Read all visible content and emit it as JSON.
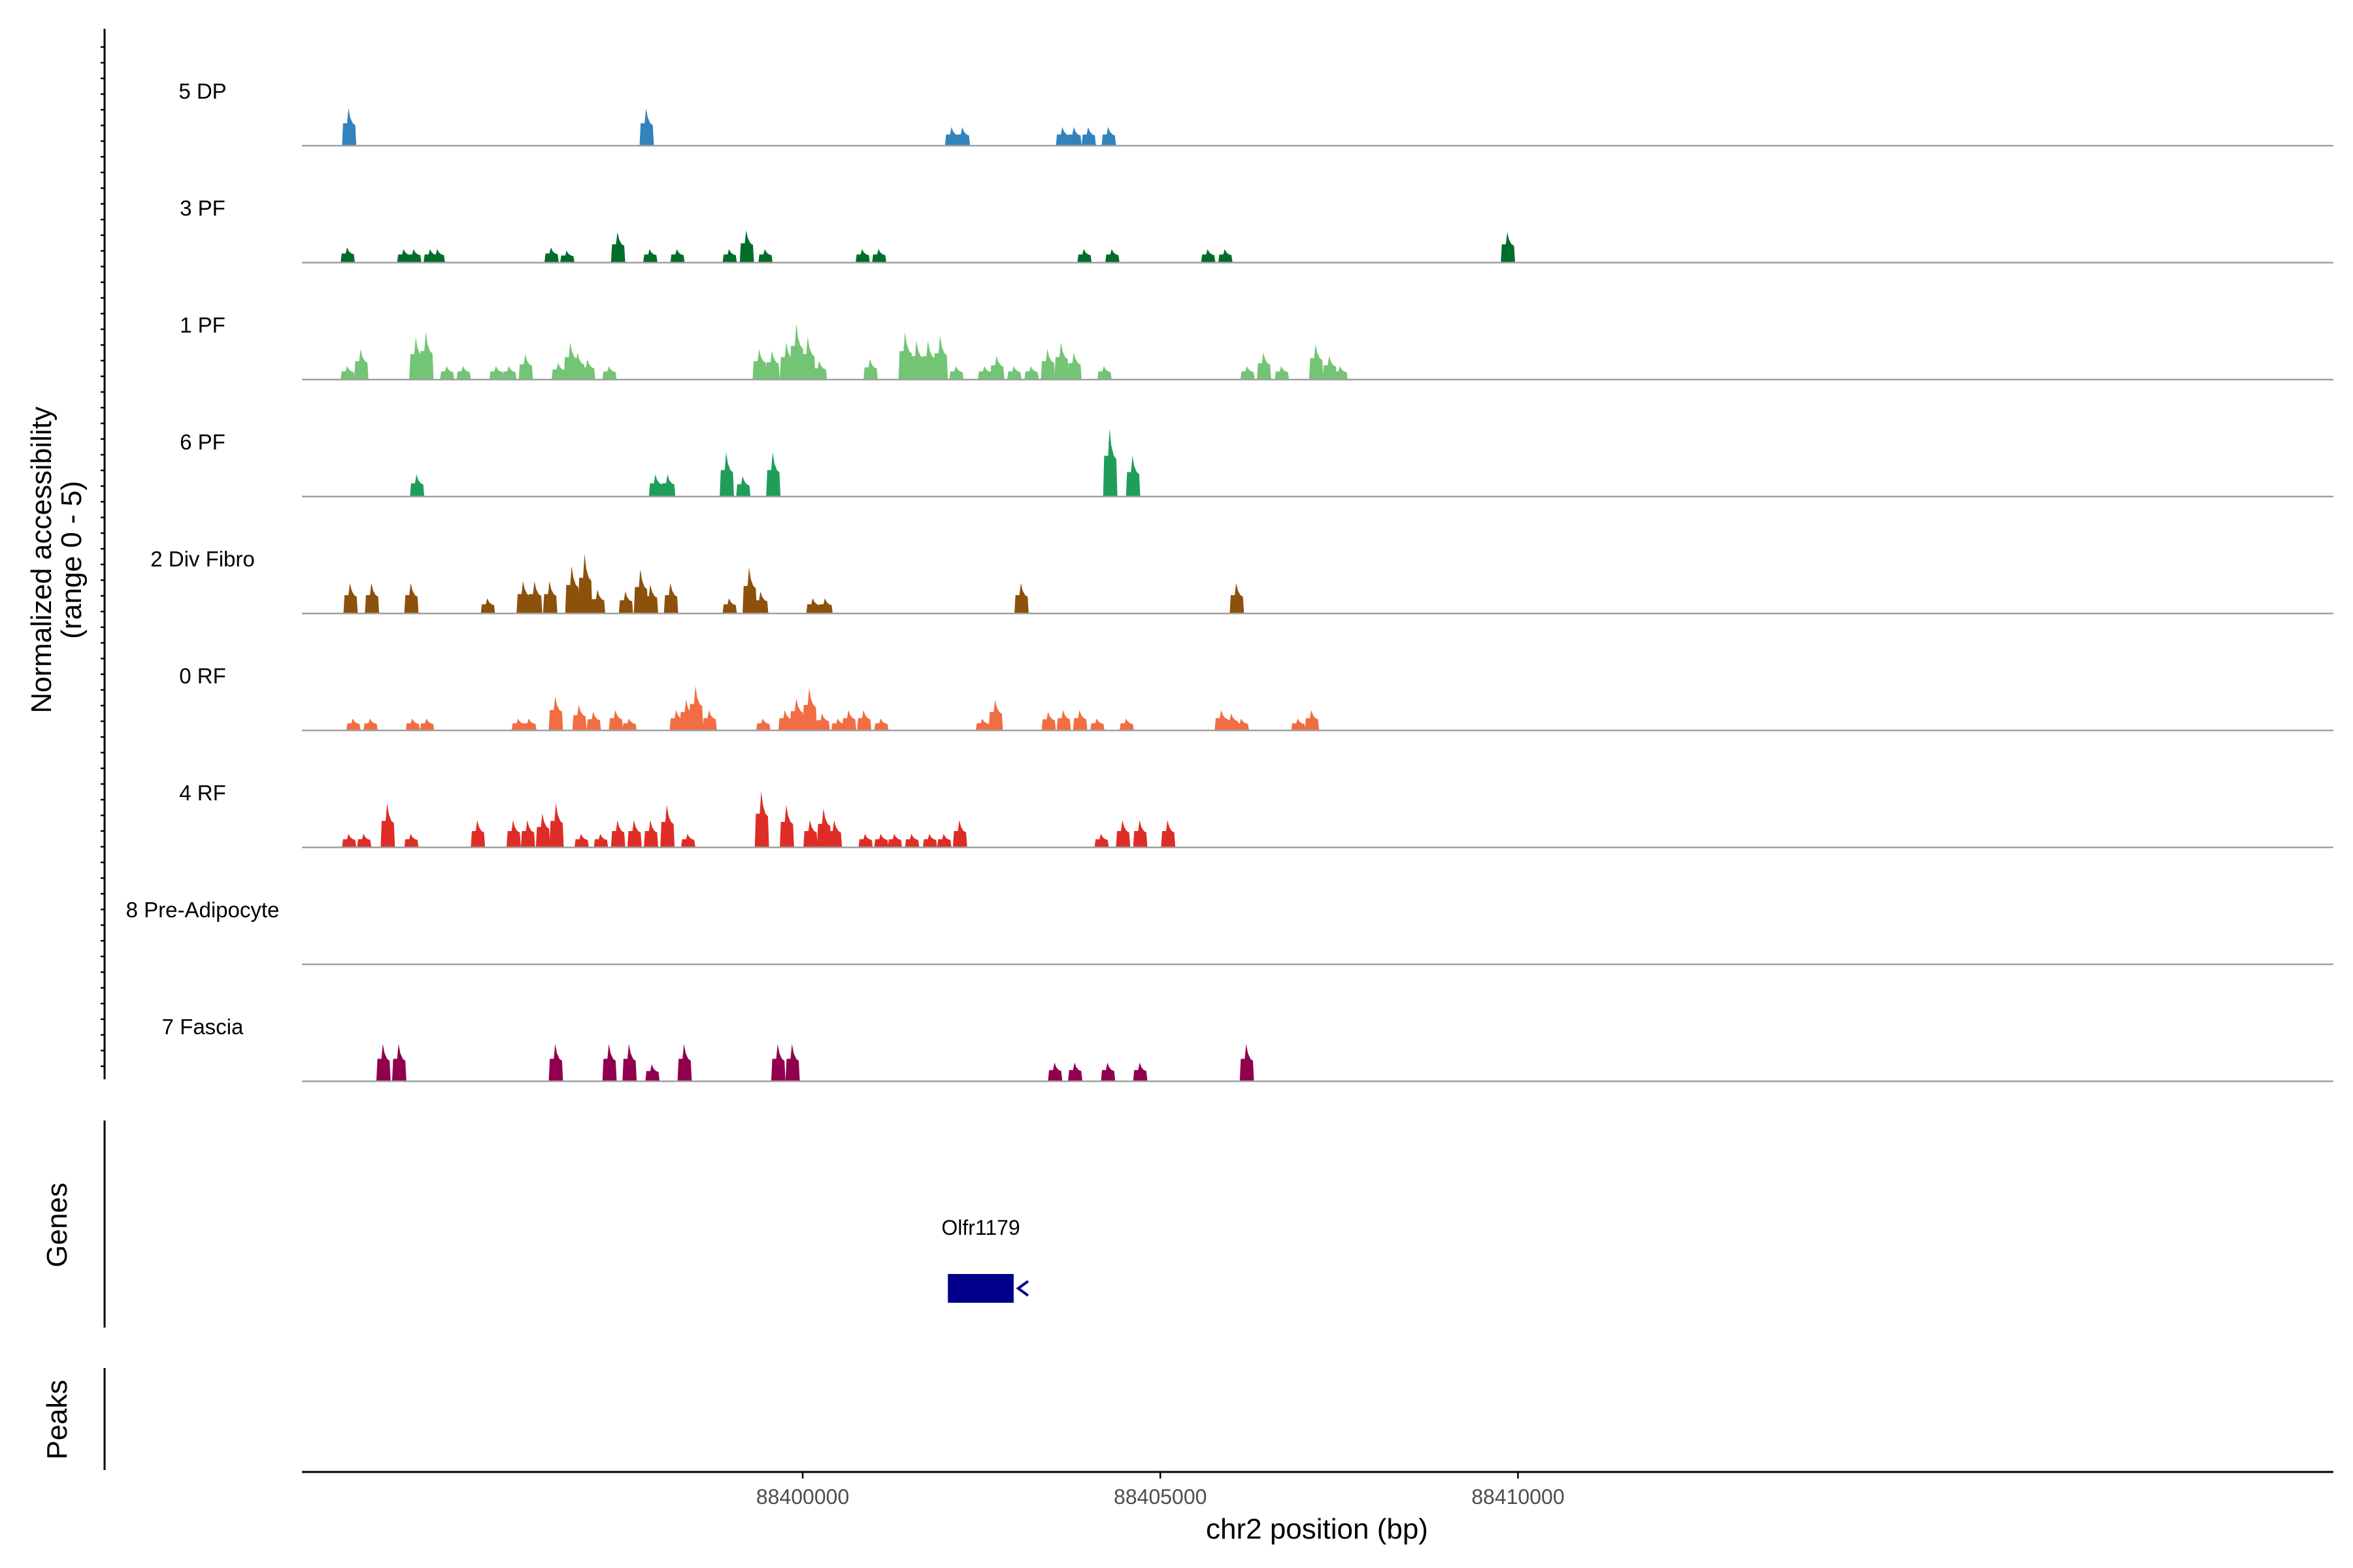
{
  "chart_data": {
    "type": "area",
    "title": "",
    "xlabel": "chr2 position (bp)",
    "ylabel": "Normalized accessibility\n(range 0 - 5)",
    "ylim": [
      0,
      5
    ],
    "xlim": [
      88393000,
      88421400
    ],
    "xticks": [
      88400000,
      88405000,
      88410000
    ],
    "xtick_labels": [
      "88400000",
      "88405000",
      "88410000"
    ],
    "bin_width_bp": 200,
    "series": [
      {
        "name": "5 DP",
        "color": "#3182bd",
        "peaks": [
          [
            88393660,
            2.2
          ],
          [
            88397820,
            2.2
          ],
          [
            88402090,
            1.1
          ],
          [
            88402240,
            1.1
          ],
          [
            88403640,
            1.1
          ],
          [
            88403800,
            1.1
          ],
          [
            88404000,
            1.1
          ],
          [
            88404280,
            1.1
          ]
        ]
      },
      {
        "name": "3 PF",
        "color": "#006d2c",
        "peaks": [
          [
            88393640,
            0.9
          ],
          [
            88394430,
            0.8
          ],
          [
            88394570,
            0.8
          ],
          [
            88394800,
            0.8
          ],
          [
            88394900,
            0.8
          ],
          [
            88396490,
            0.9
          ],
          [
            88396710,
            0.7
          ],
          [
            88397420,
            1.8
          ],
          [
            88397870,
            0.8
          ],
          [
            88398250,
            0.8
          ],
          [
            88398980,
            0.8
          ],
          [
            88399220,
            1.9
          ],
          [
            88399480,
            0.8
          ],
          [
            88400840,
            0.8
          ],
          [
            88401070,
            0.8
          ],
          [
            88403940,
            0.8
          ],
          [
            88404330,
            0.8
          ],
          [
            88405670,
            0.8
          ],
          [
            88405910,
            0.8
          ],
          [
            88409860,
            1.8
          ]
        ]
      },
      {
        "name": "1 PF",
        "color": "#74c476",
        "peaks": [
          [
            88393640,
            0.8
          ],
          [
            88393830,
            1.8
          ],
          [
            88394600,
            2.5
          ],
          [
            88394740,
            2.8
          ],
          [
            88395030,
            0.8
          ],
          [
            88395260,
            0.8
          ],
          [
            88395720,
            0.8
          ],
          [
            88395900,
            0.8
          ],
          [
            88396130,
            1.5
          ],
          [
            88396590,
            1.0
          ],
          [
            88396760,
            2.2
          ],
          [
            88396860,
            1.6
          ],
          [
            88397000,
            1.2
          ],
          [
            88397300,
            0.8
          ],
          [
            88399400,
            1.8
          ],
          [
            88399580,
            1.7
          ],
          [
            88399780,
            2.2
          ],
          [
            88399920,
            3.3
          ],
          [
            88400080,
            2.5
          ],
          [
            88400240,
            1.1
          ],
          [
            88400950,
            1.2
          ],
          [
            88401440,
            2.8
          ],
          [
            88401600,
            2.3
          ],
          [
            88401760,
            2.3
          ],
          [
            88401930,
            2.6
          ],
          [
            88402150,
            0.8
          ],
          [
            88402550,
            0.8
          ],
          [
            88402720,
            1.4
          ],
          [
            88402960,
            0.8
          ],
          [
            88403200,
            0.8
          ],
          [
            88403430,
            1.8
          ],
          [
            88403620,
            2.2
          ],
          [
            88403800,
            1.6
          ],
          [
            88404220,
            0.8
          ],
          [
            88406220,
            0.8
          ],
          [
            88406450,
            1.6
          ],
          [
            88406700,
            0.8
          ],
          [
            88407180,
            2.1
          ],
          [
            88407370,
            1.4
          ],
          [
            88407520,
            0.8
          ]
        ]
      },
      {
        "name": "6 PF",
        "color": "#1f9e5a",
        "peaks": [
          [
            88394610,
            1.3
          ],
          [
            88397950,
            1.3
          ],
          [
            88398120,
            1.3
          ],
          [
            88398940,
            2.6
          ],
          [
            88399170,
            1.2
          ],
          [
            88399590,
            2.6
          ],
          [
            88404300,
            4.0
          ],
          [
            88404620,
            2.4
          ]
        ]
      },
      {
        "name": "2 Div Fibro",
        "color": "#8c510a",
        "peaks": [
          [
            88393680,
            1.8
          ],
          [
            88393980,
            1.8
          ],
          [
            88394530,
            1.8
          ],
          [
            88395600,
            0.9
          ],
          [
            88396100,
            1.9
          ],
          [
            88396260,
            1.9
          ],
          [
            88396470,
            1.9
          ],
          [
            88396780,
            2.8
          ],
          [
            88396960,
            3.5
          ],
          [
            88397140,
            1.4
          ],
          [
            88397530,
            1.3
          ],
          [
            88397740,
            2.6
          ],
          [
            88397880,
            1.7
          ],
          [
            88398160,
            1.8
          ],
          [
            88398980,
            0.9
          ],
          [
            88399260,
            2.7
          ],
          [
            88399420,
            1.3
          ],
          [
            88400150,
            0.9
          ],
          [
            88400320,
            0.9
          ],
          [
            88403060,
            1.8
          ],
          [
            88406070,
            1.8
          ]
        ]
      },
      {
        "name": "0 RF",
        "color": "#f16d44",
        "peaks": [
          [
            88393720,
            0.7
          ],
          [
            88393960,
            0.7
          ],
          [
            88394550,
            0.7
          ],
          [
            88394750,
            0.7
          ],
          [
            88396030,
            0.7
          ],
          [
            88396180,
            0.7
          ],
          [
            88396550,
            2.0
          ],
          [
            88396880,
            1.5
          ],
          [
            88397080,
            1.1
          ],
          [
            88397390,
            1.2
          ],
          [
            88397580,
            0.7
          ],
          [
            88398240,
            1.2
          ],
          [
            88398380,
            1.8
          ],
          [
            88398510,
            2.6
          ],
          [
            88398700,
            1.2
          ],
          [
            88399450,
            0.7
          ],
          [
            88399760,
            1.2
          ],
          [
            88399920,
            1.9
          ],
          [
            88400100,
            2.5
          ],
          [
            88400280,
            1.0
          ],
          [
            88400500,
            0.7
          ],
          [
            88400650,
            1.2
          ],
          [
            88400860,
            1.2
          ],
          [
            88401100,
            0.7
          ],
          [
            88402520,
            0.7
          ],
          [
            88402700,
            1.8
          ],
          [
            88403440,
            1.1
          ],
          [
            88403650,
            1.2
          ],
          [
            88403880,
            1.2
          ],
          [
            88404120,
            0.7
          ],
          [
            88404530,
            0.7
          ],
          [
            88405860,
            1.2
          ],
          [
            88406000,
            1.0
          ],
          [
            88406140,
            0.7
          ],
          [
            88406930,
            0.7
          ],
          [
            88407120,
            1.2
          ]
        ]
      },
      {
        "name": "4 RF",
        "color": "#de2d26",
        "peaks": [
          [
            88393660,
            0.8
          ],
          [
            88393870,
            0.8
          ],
          [
            88394200,
            2.6
          ],
          [
            88394530,
            0.8
          ],
          [
            88395460,
            1.6
          ],
          [
            88395960,
            1.6
          ],
          [
            88396160,
            1.6
          ],
          [
            88396370,
            2.0
          ],
          [
            88396560,
            2.6
          ],
          [
            88396910,
            0.8
          ],
          [
            88397180,
            0.8
          ],
          [
            88397420,
            1.6
          ],
          [
            88397650,
            1.6
          ],
          [
            88397880,
            1.6
          ],
          [
            88398110,
            2.5
          ],
          [
            88398400,
            0.8
          ],
          [
            88399430,
            3.3
          ],
          [
            88399780,
            2.5
          ],
          [
            88400110,
            1.6
          ],
          [
            88400300,
            2.3
          ],
          [
            88400450,
            1.6
          ],
          [
            88400880,
            0.8
          ],
          [
            88401100,
            0.8
          ],
          [
            88401290,
            0.8
          ],
          [
            88401530,
            0.8
          ],
          [
            88401780,
            0.8
          ],
          [
            88401980,
            0.8
          ],
          [
            88402200,
            1.6
          ],
          [
            88404180,
            0.8
          ],
          [
            88404480,
            1.6
          ],
          [
            88404720,
            1.6
          ],
          [
            88405110,
            1.6
          ]
        ]
      },
      {
        "name": "8 Pre-Adipocyte",
        "color": "#7a7a7a",
        "peaks": []
      },
      {
        "name": "7 Fascia",
        "color": "#91004f",
        "peaks": [
          [
            88394140,
            2.2
          ],
          [
            88394360,
            2.2
          ],
          [
            88396550,
            2.2
          ],
          [
            88397300,
            2.2
          ],
          [
            88397580,
            2.2
          ],
          [
            88397900,
            1.0
          ],
          [
            88398350,
            2.2
          ],
          [
            88399660,
            2.2
          ],
          [
            88399860,
            2.2
          ],
          [
            88403530,
            1.1
          ],
          [
            88403810,
            1.1
          ],
          [
            88404270,
            1.1
          ],
          [
            88404720,
            1.1
          ],
          [
            88406210,
            2.2
          ]
        ]
      }
    ],
    "panels": {
      "genes": {
        "title": "Genes",
        "features": [
          {
            "name": "Olfr1179",
            "start": 88402030,
            "end": 88402950,
            "strand": "-"
          }
        ]
      },
      "peaks": {
        "title": "Peaks",
        "features": []
      }
    }
  }
}
